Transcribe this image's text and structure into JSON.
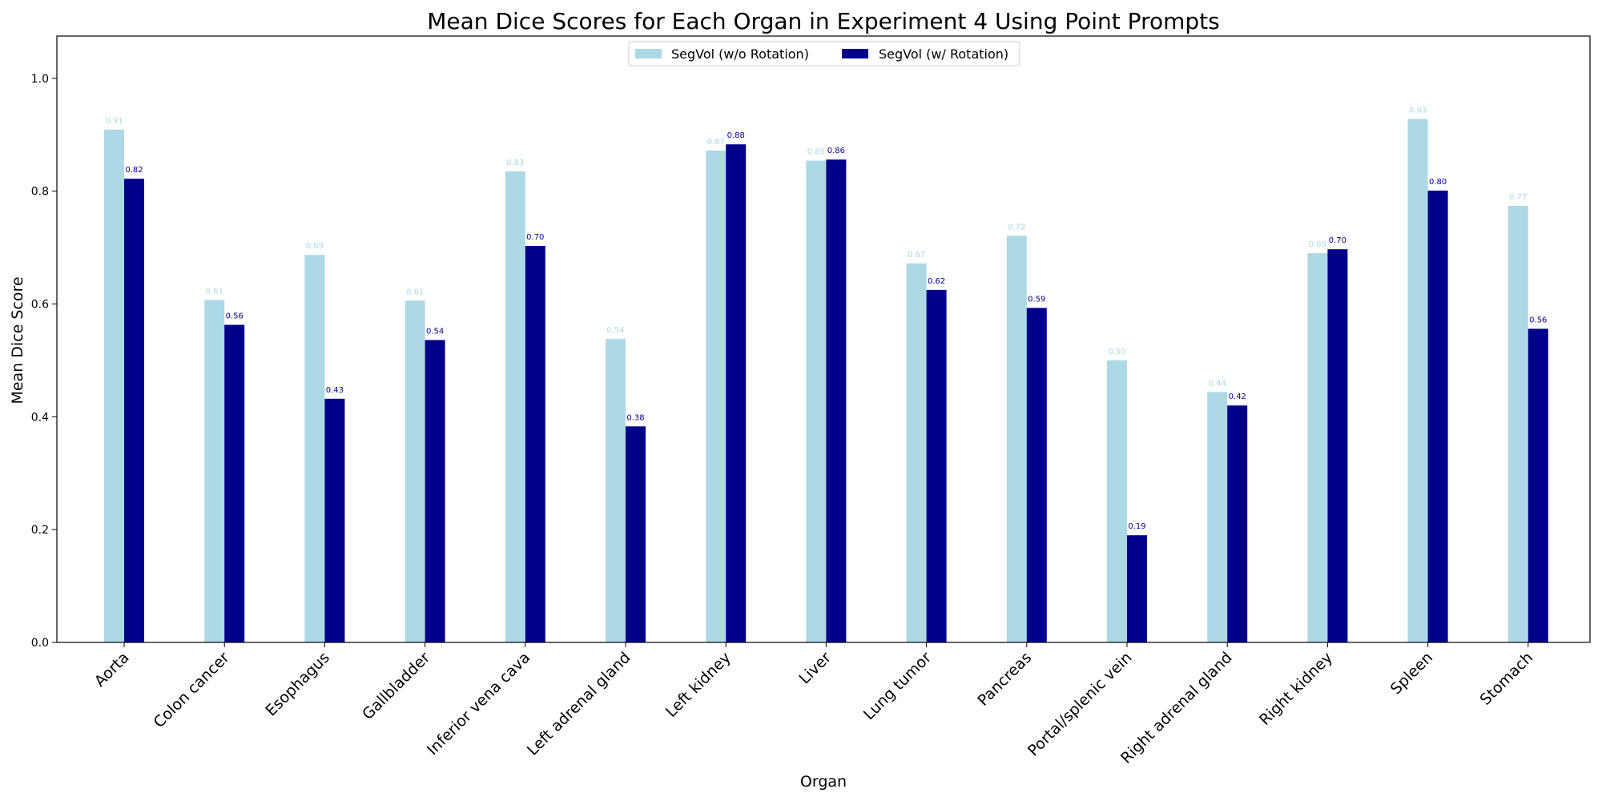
{
  "chart_data": {
    "type": "bar",
    "title": "Mean Dice Scores for Each Organ in Experiment 4 Using Point Prompts",
    "xlabel": "Organ",
    "ylabel": "Mean Dice Score",
    "ylim": [
      0,
      1.075
    ],
    "yticks": [
      "0.0",
      "0.2",
      "0.4",
      "0.6",
      "0.8",
      "1.0"
    ],
    "legend_position": "top-center",
    "categories": [
      "Aorta",
      "Colon cancer",
      "Esophagus",
      "Gallbladder",
      "Inferior vena cava",
      "Left adrenal gland",
      "Left kidney",
      "Liver",
      "Lung tumor",
      "Pancreas",
      "Portal/splenic vein",
      "Right adrenal gland",
      "Right kidney",
      "Spleen",
      "Stomach"
    ],
    "series": [
      {
        "name": "SegVol (w/o Rotation)",
        "color": "#add8e6",
        "values": [
          0.909,
          0.607,
          0.687,
          0.606,
          0.835,
          0.538,
          0.872,
          0.854,
          0.672,
          0.721,
          0.5,
          0.444,
          0.69,
          0.928,
          0.774
        ],
        "labels": [
          "0.91",
          "0.61",
          "0.69",
          "0.61",
          "0.83",
          "0.54",
          "0.87",
          "0.85",
          "0.67",
          "0.72",
          "0.50",
          "0.44",
          "0.69",
          "0.93",
          "0.77"
        ]
      },
      {
        "name": "SegVol (w/ Rotation)",
        "color": "#00008b",
        "values": [
          0.822,
          0.563,
          0.432,
          0.536,
          0.703,
          0.383,
          0.883,
          0.856,
          0.625,
          0.593,
          0.19,
          0.42,
          0.697,
          0.801,
          0.556
        ],
        "labels": [
          "0.82",
          "0.56",
          "0.43",
          "0.54",
          "0.70",
          "0.38",
          "0.88",
          "0.86",
          "0.62",
          "0.59",
          "0.19",
          "0.42",
          "0.70",
          "0.80",
          "0.56"
        ]
      }
    ]
  }
}
